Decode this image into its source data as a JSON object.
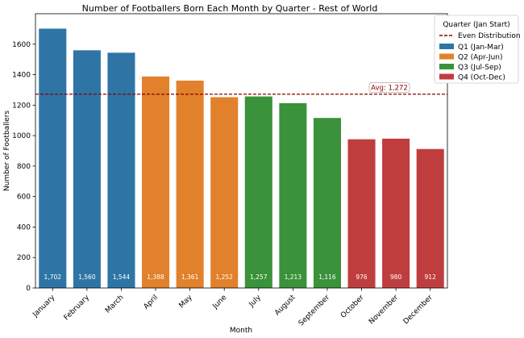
{
  "chart_data": {
    "type": "bar",
    "title": "Number of Footballers Born Each Month by Quarter - Rest of World",
    "xlabel": "Month",
    "ylabel": "Number of Footballers",
    "ylim": [
      0,
      1800
    ],
    "yticks": [
      0,
      200,
      400,
      600,
      800,
      1000,
      1200,
      1400,
      1600
    ],
    "grid": false,
    "categories": [
      "January",
      "February",
      "March",
      "April",
      "May",
      "June",
      "July",
      "August",
      "September",
      "October",
      "November",
      "December"
    ],
    "values": [
      1702,
      1560,
      1544,
      1388,
      1361,
      1252,
      1257,
      1213,
      1116,
      976,
      980,
      912
    ],
    "value_labels": [
      "1,702",
      "1,560",
      "1,544",
      "1,388",
      "1,361",
      "1,252",
      "1,257",
      "1,213",
      "1,116",
      "976",
      "980",
      "912"
    ],
    "bar_groups": [
      0,
      0,
      0,
      1,
      1,
      1,
      2,
      2,
      2,
      3,
      3,
      3
    ],
    "groups": [
      {
        "name": "Q1 (Jan-Mar)",
        "color": "#2e75a6"
      },
      {
        "name": "Q2 (Apr-Jun)",
        "color": "#e1812c"
      },
      {
        "name": "Q3 (Jul-Sep)",
        "color": "#3a923a"
      },
      {
        "name": "Q4 (Oct-Dec)",
        "color": "#c03d3e"
      }
    ],
    "reference_line": {
      "value": 1272,
      "legend_label": "Even Distribution",
      "annotation": "Avg: 1,272",
      "color": "#8b0000"
    },
    "legend": {
      "title": "Quarter (Jan Start)",
      "placement": "outside-right"
    }
  }
}
